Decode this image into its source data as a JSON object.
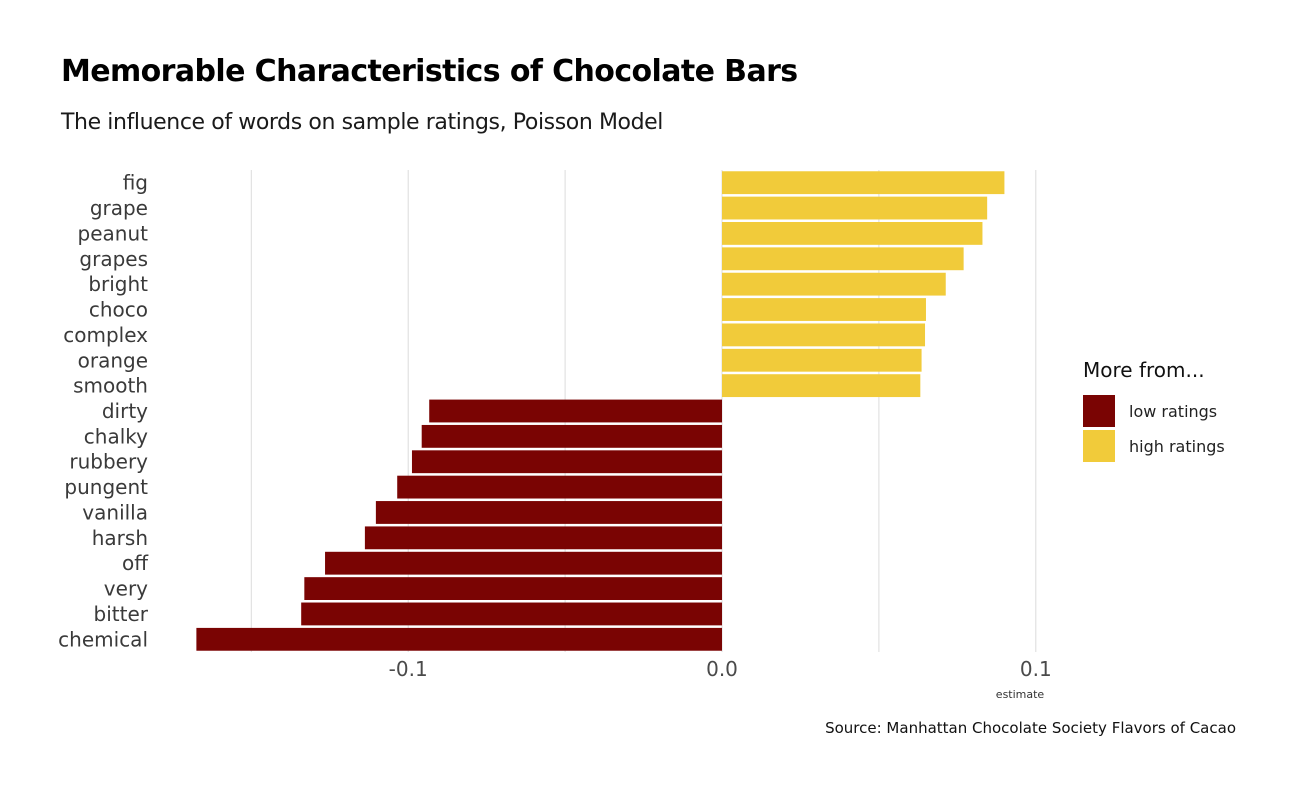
{
  "colors": {
    "low": "#7a0403",
    "high": "#f1cb3a"
  },
  "chart_data": {
    "type": "bar",
    "orientation": "horizontal",
    "title": "Memorable Characteristics of Chocolate Bars",
    "subtitle": "The influence of words on sample ratings, Poisson Model",
    "xlabel": "estimate",
    "ylabel": "",
    "xlim": [
      -0.168,
      0.101
    ],
    "x_ticks": [
      -0.1,
      0.0,
      0.1
    ],
    "x_tick_labels": [
      "-0.1",
      "0.0",
      "0.1"
    ],
    "grid": "vertical major and minor",
    "categories": [
      "fig",
      "grape",
      "peanut",
      "grapes",
      "bright",
      "choco",
      "complex",
      "orange",
      "smooth",
      "dirty",
      "chalky",
      "rubbery",
      "pungent",
      "vanilla",
      "harsh",
      "off",
      "very",
      "bitter",
      "chemical"
    ],
    "values": [
      0.09,
      0.0845,
      0.083,
      0.077,
      0.0713,
      0.065,
      0.0647,
      0.0636,
      0.0632,
      -0.0933,
      -0.0957,
      -0.0988,
      -0.1035,
      -0.1103,
      -0.1138,
      -0.1265,
      -0.1331,
      -0.1341,
      -0.1675
    ],
    "groups": [
      "high ratings",
      "high ratings",
      "high ratings",
      "high ratings",
      "high ratings",
      "high ratings",
      "high ratings",
      "high ratings",
      "high ratings",
      "low ratings",
      "low ratings",
      "low ratings",
      "low ratings",
      "low ratings",
      "low ratings",
      "low ratings",
      "low ratings",
      "low ratings",
      "low ratings"
    ],
    "legend": {
      "title": "More from...",
      "placement": "right",
      "items": [
        {
          "label": "low ratings",
          "color": "#7a0403"
        },
        {
          "label": "high ratings",
          "color": "#f1cb3a"
        }
      ]
    },
    "caption": "Source: Manhattan Chocolate Society Flavors of Cacao"
  }
}
